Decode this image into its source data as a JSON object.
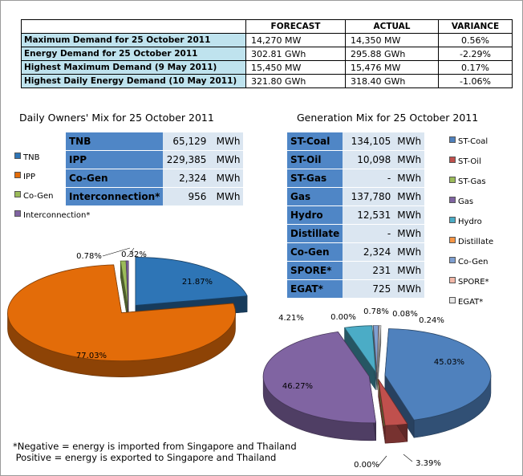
{
  "summary": {
    "headers": [
      "",
      "FORECAST",
      "ACTUAL",
      "VARIANCE"
    ],
    "rows": [
      {
        "label": "Maximum Demand for 25 October 2011",
        "forecast": "14,270  MW",
        "actual": "14,350  MW",
        "variance": "0.56%"
      },
      {
        "label": "Energy Demand for 25 October 2011",
        "forecast": "302.81  GWh",
        "actual": "295.88  GWh",
        "variance": "-2.29%"
      },
      {
        "label": "Highest Maximum Demand (9 May 2011)",
        "forecast": "15,450  MW",
        "actual": "15,476  MW",
        "variance": "0.17%"
      },
      {
        "label": "Highest Daily Energy Demand (10 May 2011)",
        "forecast": "321.80  GWh",
        "actual": "318.40  GWh",
        "variance": "-1.06%"
      }
    ]
  },
  "owners": {
    "title": "Daily Owners' Mix for 25 October 2011",
    "rows": [
      {
        "name": "TNB",
        "value": "65,129",
        "unit": "MWh"
      },
      {
        "name": "IPP",
        "value": "229,385",
        "unit": "MWh"
      },
      {
        "name": "Co-Gen",
        "value": "2,324",
        "unit": "MWh"
      },
      {
        "name": "Interconnection*",
        "value": "956",
        "unit": "MWh"
      }
    ],
    "legend": [
      {
        "label": "TNB",
        "color": "#2e75b6"
      },
      {
        "label": "IPP",
        "color": "#e36c09"
      },
      {
        "label": "Co-Gen",
        "color": "#9bbb59"
      },
      {
        "label": "Interconnection*",
        "color": "#8064a2"
      }
    ]
  },
  "generation": {
    "title": "Generation Mix for 25 October 2011",
    "rows": [
      {
        "name": "ST-Coal",
        "value": "134,105",
        "unit": "MWh"
      },
      {
        "name": "ST-Oil",
        "value": "10,098",
        "unit": "MWh"
      },
      {
        "name": "ST-Gas",
        "value": "-",
        "unit": "MWh"
      },
      {
        "name": "Gas",
        "value": "137,780",
        "unit": "MWh"
      },
      {
        "name": "Hydro",
        "value": "12,531",
        "unit": "MWh"
      },
      {
        "name": "Distillate",
        "value": "-",
        "unit": "MWh"
      },
      {
        "name": "Co-Gen",
        "value": "2,324",
        "unit": "MWh"
      },
      {
        "name": "SPORE*",
        "value": "231",
        "unit": "MWh"
      },
      {
        "name": "EGAT*",
        "value": "725",
        "unit": "MWh"
      }
    ],
    "legend": [
      {
        "label": "ST-Coal",
        "color": "#4f81bd"
      },
      {
        "label": "ST-Oil",
        "color": "#c0504d"
      },
      {
        "label": "ST-Gas",
        "color": "#9bbb59"
      },
      {
        "label": "Gas",
        "color": "#8064a2"
      },
      {
        "label": "Hydro",
        "color": "#4bacc6"
      },
      {
        "label": "Distillate",
        "color": "#f79646"
      },
      {
        "label": "Co-Gen",
        "color": "#7f9fd1"
      },
      {
        "label": "SPORE*",
        "color": "#f2b8a8"
      },
      {
        "label": "EGAT*",
        "color": "#e6e6e6"
      }
    ]
  },
  "chart_data": [
    {
      "type": "pie",
      "title": "Daily Owners' Mix for 25 October 2011",
      "categories": [
        "TNB",
        "IPP",
        "Co-Gen",
        "Interconnection*"
      ],
      "values": [
        21.87,
        77.03,
        0.78,
        0.32
      ],
      "labels": [
        "21.87%",
        "77.03%",
        "0.78%",
        "0.32%"
      ],
      "colors": [
        "#2e75b6",
        "#e36c09",
        "#9bbb59",
        "#8064a2"
      ],
      "exploded": [
        true,
        true,
        false,
        false
      ],
      "legend": "left"
    },
    {
      "type": "pie",
      "title": "Generation Mix for 25 October 2011",
      "categories": [
        "ST-Coal",
        "ST-Oil",
        "ST-Gas",
        "Gas",
        "Hydro",
        "Distillate",
        "Co-Gen",
        "SPORE*",
        "EGAT*"
      ],
      "values": [
        45.03,
        3.39,
        0.0,
        46.27,
        4.21,
        0.0,
        0.78,
        0.08,
        0.24
      ],
      "labels": [
        "45.03%",
        "3.39%",
        "0.00%",
        "46.27%",
        "4.21%",
        "0.00%",
        "0.78%",
        "0.08%",
        "0.24%"
      ],
      "colors": [
        "#4f81bd",
        "#c0504d",
        "#9bbb59",
        "#8064a2",
        "#4bacc6",
        "#f79646",
        "#7f9fd1",
        "#f2b8a8",
        "#e6e6e6"
      ],
      "exploded": [
        true,
        true,
        true,
        true,
        true,
        true,
        true,
        true,
        true
      ],
      "legend": "right"
    }
  ],
  "footnote": {
    "line1": "*Negative = energy is imported from Singapore and Thailand",
    "line2": " Positive = energy is exported to Singapore and Thailand"
  }
}
